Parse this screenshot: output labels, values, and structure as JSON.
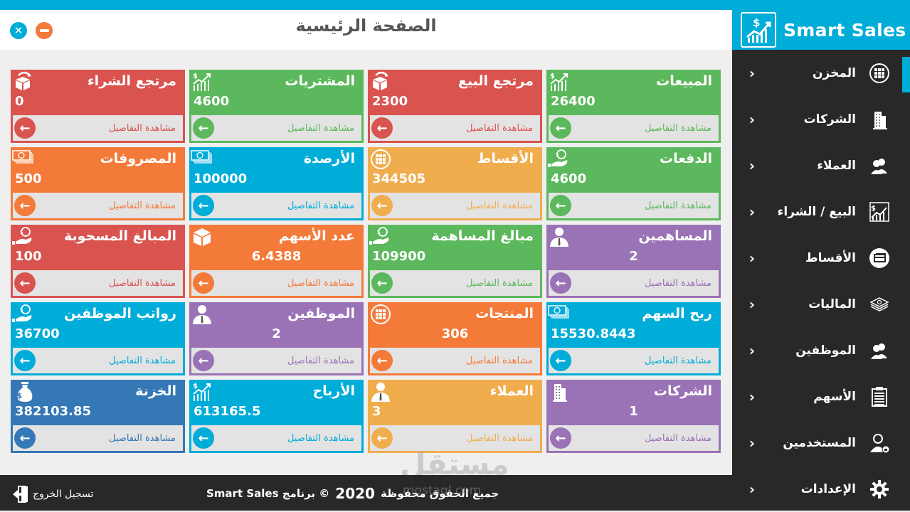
{
  "window": {
    "title": "الصفحة الرئيسية",
    "close_icon": "close-icon",
    "minimize_icon": "minimize-icon"
  },
  "brand": {
    "name": "Smart Sales",
    "logo_icon": "chart-dollar-icon"
  },
  "colors": {
    "accent_blue": "#00acd8",
    "red": "#d9534f",
    "green": "#5cb85c",
    "orange": "#f47a3a",
    "light_orange": "#f0ad4e",
    "purple": "#9a72b6",
    "dark_blue": "#3478b5",
    "sidebar_bg": "#282828",
    "footer_bg": "#282828",
    "content_bg": "#efefef",
    "footer_link_bg": "#e3e3e3"
  },
  "sidebar": {
    "items": [
      {
        "label": "المخزن",
        "icon": "grid-icon",
        "active": true
      },
      {
        "label": "الشركات",
        "icon": "building-icon"
      },
      {
        "label": "العملاء",
        "icon": "users-icon"
      },
      {
        "label": "البيع / الشراء",
        "icon": "sales-chart-icon"
      },
      {
        "label": "الأقساط",
        "icon": "cards-icon"
      },
      {
        "label": "الماليات",
        "icon": "money-stack-icon"
      },
      {
        "label": "الموظفين",
        "icon": "users-icon"
      },
      {
        "label": "الأسهم",
        "icon": "clipboard-icon"
      },
      {
        "label": "المستخدمين",
        "icon": "user-lock-icon"
      },
      {
        "label": "الإعدادات",
        "icon": "gear-icon"
      }
    ]
  },
  "details_label": "مشاهدة التفاصيل",
  "cards": [
    {
      "title": "المبيعات",
      "value": "26400",
      "color": "#5cb85c",
      "icon": "chart-dollar-icon",
      "align": "left"
    },
    {
      "title": "مرتجع البيع",
      "value": "2300",
      "color": "#d9534f",
      "icon": "box-return-icon",
      "align": "left"
    },
    {
      "title": "المشتريات",
      "value": "4600",
      "color": "#5cb85c",
      "icon": "chart-dollar-icon",
      "align": "left"
    },
    {
      "title": "مرتجع الشراء",
      "value": "0",
      "color": "#d9534f",
      "icon": "box-return-icon",
      "align": "left"
    },
    {
      "title": "الدفعات",
      "value": "4600",
      "color": "#5cb85c",
      "icon": "hand-coin-icon",
      "align": "left"
    },
    {
      "title": "الأقساط",
      "value": "344505",
      "color": "#f0ad4e",
      "icon": "grid-icon",
      "align": "left"
    },
    {
      "title": "الأرصدة",
      "value": "100000",
      "color": "#00acd8",
      "icon": "banknote-icon",
      "align": "left"
    },
    {
      "title": "المصروفات",
      "value": "500",
      "color": "#f47a3a",
      "icon": "banknote-icon",
      "align": "left"
    },
    {
      "title": "المساهمين",
      "value": "2",
      "color": "#9a72b6",
      "icon": "person-icon",
      "align": "center"
    },
    {
      "title": "مبالغ المساهمة",
      "value": "109900",
      "color": "#5cb85c",
      "icon": "hand-coin-icon",
      "align": "left"
    },
    {
      "title": "عدد الأسهم",
      "value": "6.4388",
      "color": "#f47a3a",
      "icon": "box-icon",
      "align": "center"
    },
    {
      "title": "المبالغ المسحوبة",
      "value": "100",
      "color": "#d9534f",
      "icon": "hand-coin-icon",
      "align": "left"
    },
    {
      "title": "ربح السهم",
      "value": "15530.8443",
      "color": "#00acd8",
      "icon": "banknote-icon",
      "align": "left"
    },
    {
      "title": "المنتجات",
      "value": "306",
      "color": "#f47a3a",
      "icon": "grid-icon",
      "align": "center"
    },
    {
      "title": "الموظفين",
      "value": "2",
      "color": "#9a72b6",
      "icon": "person-icon",
      "align": "center"
    },
    {
      "title": "رواتب الموظفين",
      "value": "36700",
      "color": "#00acd8",
      "icon": "hand-coin-icon",
      "align": "left"
    },
    {
      "title": "الشركات",
      "value": "1",
      "color": "#9a72b6",
      "icon": "building-icon",
      "align": "center"
    },
    {
      "title": "العملاء",
      "value": "3",
      "color": "#f0ad4e",
      "icon": "person-icon",
      "align": "left"
    },
    {
      "title": "الأرباح",
      "value": "613165.5",
      "color": "#00acd8",
      "icon": "chart-dollar-icon",
      "align": "left"
    },
    {
      "title": "الخزنة",
      "value": "382103.85",
      "color": "#3478b5",
      "icon": "money-bag-icon",
      "align": "left"
    }
  ],
  "footer": {
    "copyright_text": "جميع الحقوق محفوظة",
    "year": "2020",
    "program_text": "© برنامج Smart Sales",
    "logout_label": "تسجيل الخروج",
    "logout_icon": "logout-door-icon"
  },
  "watermark": {
    "arabic": "مستقل",
    "latin": "mostaql.com"
  }
}
